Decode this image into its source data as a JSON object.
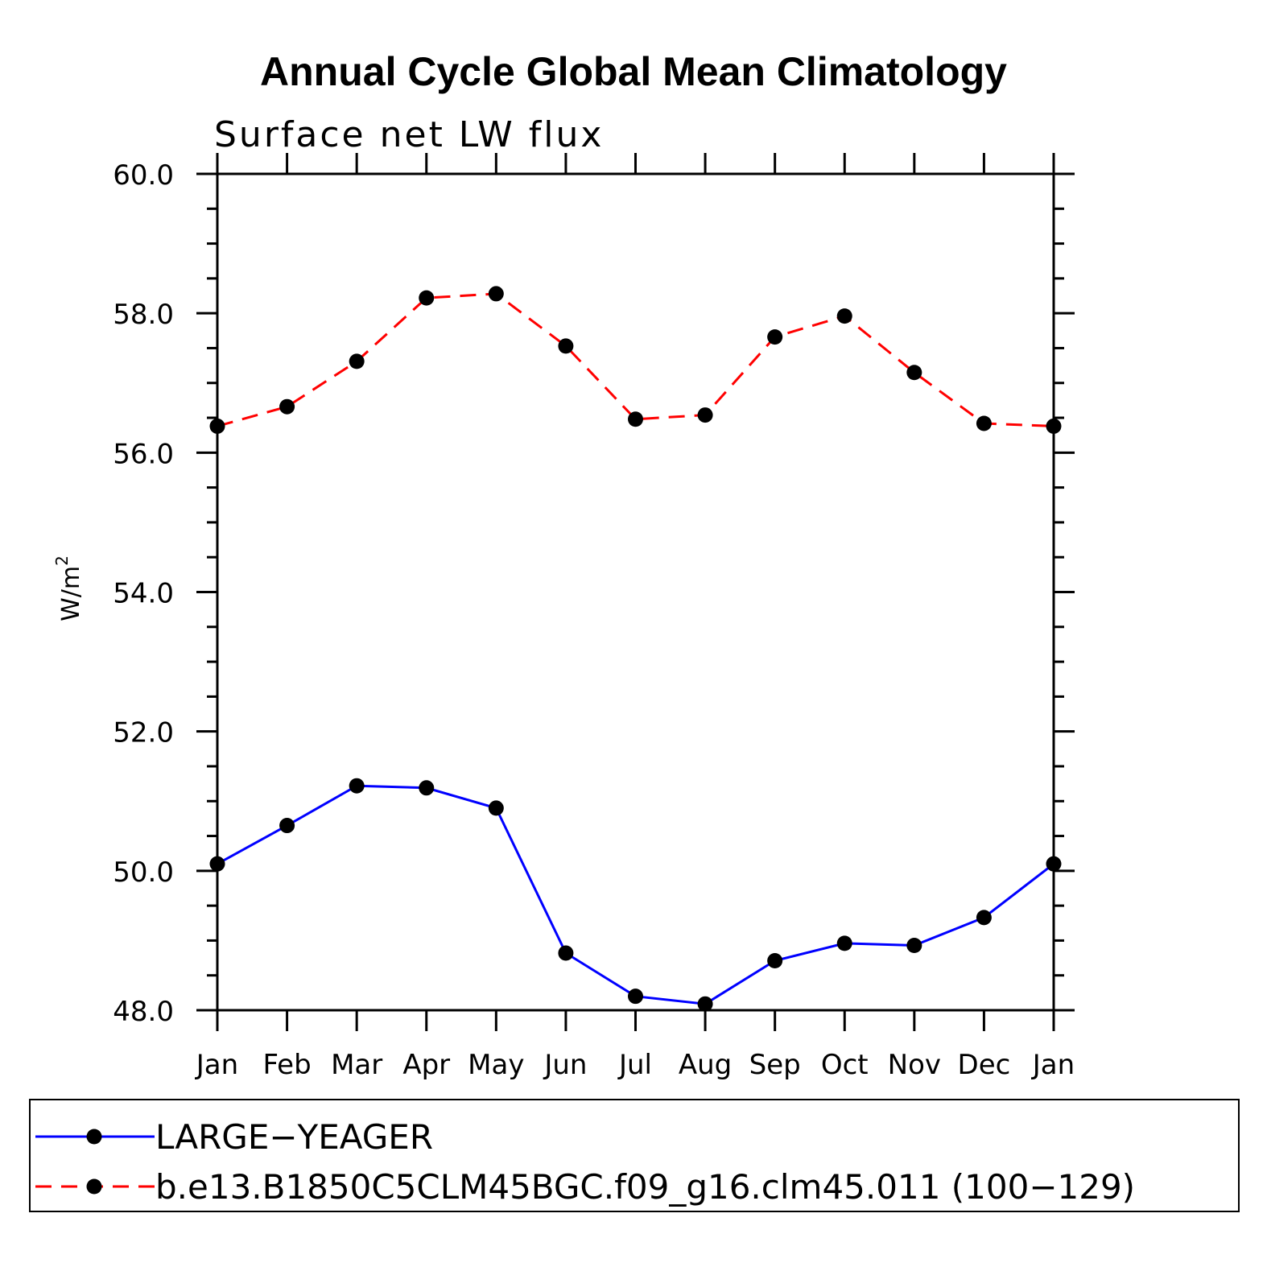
{
  "chart_data": {
    "type": "line",
    "title": "Annual Cycle Global Mean Climatology",
    "subtitle": "Surface net LW flux",
    "ylabel_base": "W/m",
    "ylabel_sup": "2",
    "xlabel": "",
    "categories": [
      "Jan",
      "Feb",
      "Mar",
      "Apr",
      "May",
      "Jun",
      "Jul",
      "Aug",
      "Sep",
      "Oct",
      "Nov",
      "Dec",
      "Jan"
    ],
    "yticks": [
      "48.0",
      "50.0",
      "52.0",
      "54.0",
      "56.0",
      "58.0",
      "60.0"
    ],
    "ylim": [
      48,
      60
    ],
    "grid": false,
    "legend_position": "bottom",
    "series": [
      {
        "name": "LARGE−YEAGER",
        "color": "#0000ff",
        "dash": "solid",
        "marker": "circle",
        "values": [
          50.1,
          50.65,
          51.22,
          51.19,
          50.9,
          48.82,
          48.2,
          48.09,
          48.71,
          48.96,
          48.93,
          49.33,
          50.1
        ]
      },
      {
        "name": "b.e13.B1850C5CLM45BGC.f09_g16.clm45.011 (100−129)",
        "color": "#ff0000",
        "dash": "dashed",
        "marker": "circle",
        "values": [
          56.38,
          56.66,
          57.31,
          58.22,
          58.28,
          57.53,
          56.48,
          56.54,
          57.66,
          57.96,
          57.15,
          56.42,
          56.38
        ]
      }
    ]
  }
}
